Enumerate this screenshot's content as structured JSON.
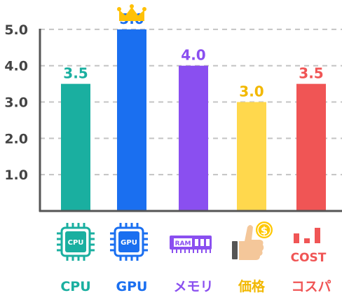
{
  "chart_data": {
    "type": "bar",
    "categories": [
      "CPU",
      "GPU",
      "メモリ",
      "価格",
      "コスパ"
    ],
    "values": [
      3.5,
      5.0,
      4.0,
      3.0,
      3.5
    ],
    "value_labels": [
      "3.5",
      "5.0",
      "4.0",
      "3.0",
      "3.5"
    ],
    "colors": [
      "#1aafa0",
      "#1a6ff0",
      "#8a4ff0",
      "#ffd84d",
      "#f05555"
    ],
    "label_colors": [
      "#1aafa0",
      "#1a6ff0",
      "#8a4ff0",
      "#f2b800",
      "#f05555"
    ],
    "yticks": [
      "1.0",
      "2.0",
      "3.0",
      "4.0",
      "5.0"
    ],
    "ylim": [
      0,
      5.5
    ],
    "grid": true,
    "title": "",
    "xlabel": "",
    "ylabel": "",
    "icons": [
      {
        "name": "cpu-chip-icon",
        "text": "CPU"
      },
      {
        "name": "gpu-chip-icon",
        "text": "GPU"
      },
      {
        "name": "ram-module-icon",
        "text": "RAM"
      },
      {
        "name": "thumbs-up-coin-icon",
        "text": "$"
      },
      {
        "name": "cost-bars-icon",
        "text": "COST"
      }
    ],
    "winner_icon": "crown-icon"
  }
}
